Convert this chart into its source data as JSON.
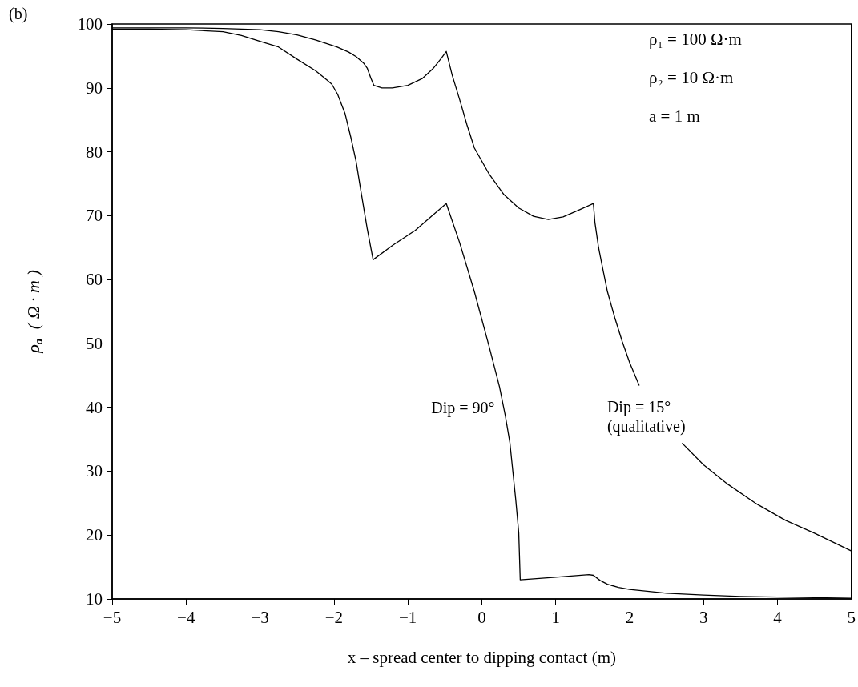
{
  "chart_data": {
    "type": "line",
    "title": "(b)",
    "xlabel": "x – spread center to dipping contact (m)",
    "ylabel": "ρ$_{a}$ ( Ω · m )",
    "xlim": [
      -5,
      5
    ],
    "xticks": [
      -5,
      -4,
      -3,
      -2,
      -1,
      0,
      1,
      2,
      3,
      4,
      5
    ],
    "ylim": [
      10,
      100
    ],
    "yticks": [
      10,
      20,
      30,
      40,
      50,
      60,
      70,
      80,
      90,
      100
    ],
    "grid": false,
    "marker": "none",
    "line_style": "solid",
    "series": [
      {
        "name": "Dip = 90°",
        "color": "#000000",
        "x": [
          -5,
          -4.5,
          -4,
          -3.5,
          -3.25,
          -3,
          -2.75,
          -2.5,
          -2.25,
          -2.1,
          -2.03,
          -1.95,
          -1.85,
          -1.77,
          -1.7,
          -1.63,
          -1.55,
          -1.47,
          -1.2,
          -0.9,
          -0.66,
          -0.55,
          -0.48,
          -0.3,
          -0.1,
          0.1,
          0.24,
          0.32,
          0.38,
          0.42,
          0.46,
          0.5,
          0.52,
          1.0,
          1.45,
          1.51,
          1.6,
          1.7,
          1.85,
          2,
          2.5,
          3,
          3.5,
          4,
          4.5,
          5
        ],
        "values": [
          99.2,
          99.2,
          99.1,
          98.8,
          98.2,
          97.3,
          96.4,
          94.5,
          92.7,
          91.3,
          90.6,
          89,
          86,
          82.2,
          78.5,
          73.5,
          68,
          63.1,
          65.4,
          67.7,
          70.1,
          71.2,
          71.9,
          65.8,
          58.1,
          49.5,
          43.2,
          38.6,
          34.5,
          30,
          25.5,
          20.4,
          13.0,
          13.4,
          13.8,
          13.7,
          12.9,
          12.3,
          11.8,
          11.5,
          10.9,
          10.6,
          10.4,
          10.3,
          10.2,
          10.1
        ]
      },
      {
        "name": "Dip = 15° (qualitative)",
        "color": "#000000",
        "x": [
          -5,
          -4,
          -3.5,
          -3,
          -2.75,
          -2.5,
          -2.25,
          -1.96,
          -1.8,
          -1.7,
          -1.6,
          -1.55,
          -1.5,
          -1.46,
          -1.35,
          -1.21,
          -1.0,
          -0.8,
          -0.66,
          -0.55,
          -0.48,
          -0.4,
          -0.3,
          -0.2,
          -0.1,
          0.1,
          0.3,
          0.5,
          0.7,
          0.9,
          1.1,
          1.3,
          1.51,
          1.53,
          1.58,
          1.64,
          1.7,
          1.8,
          1.9,
          2.0,
          2.13,
          2.4,
          2.71,
          3.0,
          3.31,
          3.7,
          4.11,
          4.5,
          5
        ],
        "values": [
          99.4,
          99.4,
          99.3,
          99.1,
          98.8,
          98.3,
          97.5,
          96.4,
          95.6,
          94.9,
          93.9,
          93.1,
          91.5,
          90.4,
          90.0,
          90.0,
          90.4,
          91.5,
          93.0,
          94.6,
          95.7,
          92.0,
          88.2,
          84.2,
          80.6,
          76.5,
          73.3,
          71.2,
          69.9,
          69.4,
          69.8,
          70.8,
          71.9,
          69,
          65,
          61.5,
          58.1,
          54,
          50.3,
          47,
          43.4,
          null,
          34.4,
          31,
          28.1,
          25,
          22.3,
          20.3,
          17.5
        ]
      }
    ],
    "annotations": [
      "ρ₁ = 100 Ω·m",
      "ρ₂ = 10 Ω·m",
      "a = 1 m"
    ]
  }
}
